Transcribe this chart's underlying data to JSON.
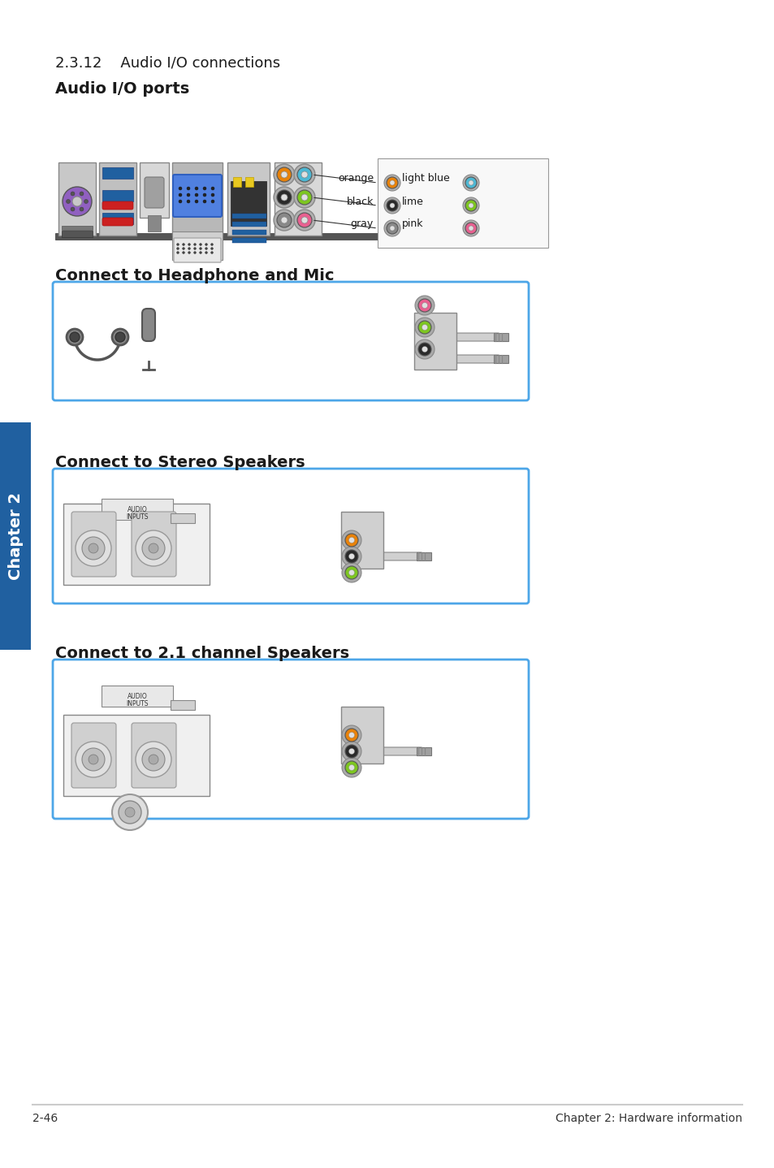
{
  "title_section": "2.3.12    Audio I/O connections",
  "subtitle1": "Audio I/O ports",
  "subtitle2": "Connect to Headphone and Mic",
  "subtitle3": "Connect to Stereo Speakers",
  "subtitle4": "Connect to 2.1 channel Speakers",
  "footer_left": "2-46",
  "footer_right": "Chapter 2: Hardware information",
  "bg_color": "#ffffff",
  "text_color": "#1a1a1a",
  "blue_line_color": "#4da6e8",
  "connector_bg": "#e8e8e8",
  "port_colors": {
    "orange": "#e8820a",
    "light_blue": "#4db8d4",
    "black": "#2a2a2a",
    "lime": "#7dc620",
    "gray": "#888888",
    "pink": "#e86090"
  },
  "label_orange": "orange",
  "label_light_blue": "light blue",
  "label_black": "black",
  "label_lime": "lime",
  "label_gray": "gray",
  "label_pink": "pink"
}
